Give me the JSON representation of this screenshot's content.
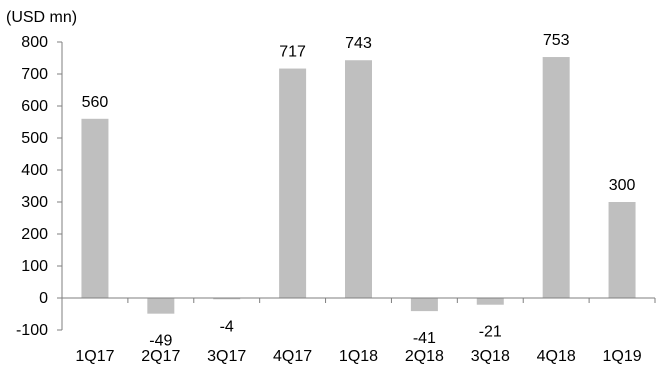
{
  "chart_data": {
    "type": "bar",
    "unit_label": "(USD mn)",
    "categories": [
      "1Q17",
      "2Q17",
      "3Q17",
      "4Q17",
      "1Q18",
      "2Q18",
      "3Q18",
      "4Q18",
      "1Q19"
    ],
    "values": [
      560,
      -49,
      -4,
      717,
      743,
      -41,
      -21,
      753,
      300
    ],
    "data_labels": [
      "560",
      "-49",
      "-4",
      "717",
      "743",
      "-41",
      "-21",
      "753",
      "300"
    ],
    "yticks": [
      -100,
      0,
      100,
      200,
      300,
      400,
      500,
      600,
      700,
      800
    ],
    "ylim": [
      -100,
      800
    ],
    "grid": false,
    "bar_color": "#bfbfbf",
    "axis_color": "#7f7f7f"
  }
}
